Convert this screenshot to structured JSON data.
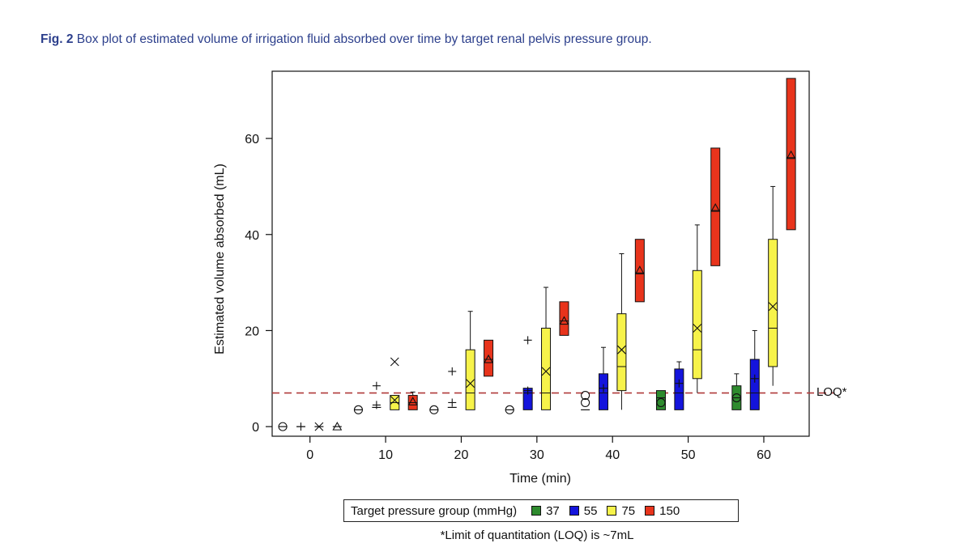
{
  "caption": {
    "label": "Fig. 2",
    "text": "Box plot of estimated volume of irrigation fluid absorbed over time by target renal pelvis pressure group."
  },
  "chart_data": {
    "type": "box",
    "xlabel": "Time (min)",
    "ylabel": "Estimated volume absorbed (mL)",
    "xticks": [
      0,
      10,
      20,
      30,
      40,
      50,
      60
    ],
    "yticks": [
      0,
      20,
      40,
      60
    ],
    "xlim": [
      -5,
      66
    ],
    "ylim": [
      -2,
      74
    ],
    "reference_line": {
      "value": 7,
      "label": "LOQ*",
      "color": "#b03a3a"
    },
    "groups": [
      {
        "name": "37",
        "color": "#2e8b2e",
        "marker": "circle"
      },
      {
        "name": "55",
        "color": "#1414dc",
        "marker": "plus"
      },
      {
        "name": "75",
        "color": "#f7f34a",
        "marker": "x"
      },
      {
        "name": "150",
        "color": "#e8341c",
        "marker": "triangle"
      }
    ],
    "boxes": [
      {
        "group": "37",
        "time": 0,
        "q1": 0,
        "median": 0,
        "q3": 0,
        "mean": 0
      },
      {
        "group": "55",
        "time": 0,
        "q1": 0,
        "median": 0,
        "q3": 0,
        "mean": 0
      },
      {
        "group": "75",
        "time": 0,
        "q1": 0,
        "median": 0,
        "q3": 0,
        "mean": 0
      },
      {
        "group": "150",
        "time": 0,
        "q1": 0,
        "median": 0,
        "q3": 0,
        "mean": 0
      },
      {
        "group": "37",
        "time": 10,
        "q1": 3.5,
        "median": 3.5,
        "q3": 3.5,
        "mean": 3.5
      },
      {
        "group": "55",
        "time": 10,
        "q1": 4,
        "median": 4,
        "q3": 4,
        "mean": 4.5,
        "outliers": [
          8.5
        ]
      },
      {
        "group": "75",
        "time": 10,
        "q1": 3.5,
        "median": 5,
        "q3": 6.5,
        "mean": 5.5,
        "whisker_high": 6.5,
        "outliers": [
          13.5
        ]
      },
      {
        "group": "150",
        "time": 10,
        "q1": 3.5,
        "median": 5,
        "q3": 6.5,
        "mean": 5.2,
        "whisker_high": 7.2
      },
      {
        "group": "37",
        "time": 20,
        "q1": 3.5,
        "median": 3.5,
        "q3": 3.5,
        "mean": 3.5
      },
      {
        "group": "55",
        "time": 20,
        "q1": 4,
        "median": 4,
        "q3": 4,
        "mean": 5,
        "outliers": [
          11.5
        ]
      },
      {
        "group": "75",
        "time": 20,
        "q1": 3.5,
        "median": 7,
        "q3": 16,
        "mean": 9,
        "whisker_low": 3.5,
        "whisker_high": 24
      },
      {
        "group": "150",
        "time": 20,
        "q1": 10.5,
        "median": 14,
        "q3": 18,
        "mean": 14
      },
      {
        "group": "37",
        "time": 30,
        "q1": 3.5,
        "median": 3.5,
        "q3": 3.5,
        "mean": 3.5
      },
      {
        "group": "55",
        "time": 30,
        "q1": 3.5,
        "median": 7,
        "q3": 8,
        "mean": 7.5,
        "outliers": [
          18
        ]
      },
      {
        "group": "75",
        "time": 30,
        "q1": 3.5,
        "median": 7,
        "q3": 20.5,
        "mean": 11.5,
        "whisker_low": 3.5,
        "whisker_high": 29
      },
      {
        "group": "150",
        "time": 30,
        "q1": 19,
        "median": 22,
        "q3": 26,
        "mean": 22
      },
      {
        "group": "37",
        "time": 40,
        "q1": 3.5,
        "median": 3.5,
        "q3": 3.5,
        "mean": 5,
        "outliers": [
          6.5
        ]
      },
      {
        "group": "55",
        "time": 40,
        "q1": 3.5,
        "median": 7,
        "q3": 11,
        "mean": 8,
        "whisker_low": 3.5,
        "whisker_high": 16.5
      },
      {
        "group": "75",
        "time": 40,
        "q1": 7.5,
        "median": 12.5,
        "q3": 23.5,
        "mean": 16,
        "whisker_low": 3.5,
        "whisker_high": 36
      },
      {
        "group": "150",
        "time": 40,
        "q1": 26,
        "median": 32,
        "q3": 39,
        "mean": 32.5
      },
      {
        "group": "37",
        "time": 50,
        "q1": 3.5,
        "median": 6,
        "q3": 7.5,
        "mean": 5
      },
      {
        "group": "55",
        "time": 50,
        "q1": 3.5,
        "median": 7,
        "q3": 12,
        "mean": 9,
        "whisker_high": 13.5
      },
      {
        "group": "75",
        "time": 50,
        "q1": 10,
        "median": 16,
        "q3": 32.5,
        "mean": 20.5,
        "whisker_low": 7,
        "whisker_high": 42
      },
      {
        "group": "150",
        "time": 50,
        "q1": 33.5,
        "median": 45,
        "q3": 58,
        "mean": 45.5
      },
      {
        "group": "37",
        "time": 60,
        "q1": 3.5,
        "median": 6,
        "q3": 8.5,
        "mean": 6,
        "whisker_high": 11
      },
      {
        "group": "55",
        "time": 60,
        "q1": 3.5,
        "median": 7,
        "q3": 14,
        "mean": 10,
        "whisker_high": 20
      },
      {
        "group": "75",
        "time": 60,
        "q1": 12.5,
        "median": 20.5,
        "q3": 39,
        "mean": 25,
        "whisker_low": 8.5,
        "whisker_high": 50
      },
      {
        "group": "150",
        "time": 60,
        "q1": 41,
        "median": 56,
        "q3": 72.5,
        "mean": 56.5
      }
    ]
  },
  "legend": {
    "title": "Target pressure group (mmHg)",
    "entries": [
      {
        "label": "37",
        "color": "#2e8b2e"
      },
      {
        "label": "55",
        "color": "#1414dc"
      },
      {
        "label": "75",
        "color": "#f7f34a"
      },
      {
        "label": "150",
        "color": "#e8341c"
      }
    ]
  },
  "footnote": "*Limit of quantitation (LOQ) is ~7mL"
}
